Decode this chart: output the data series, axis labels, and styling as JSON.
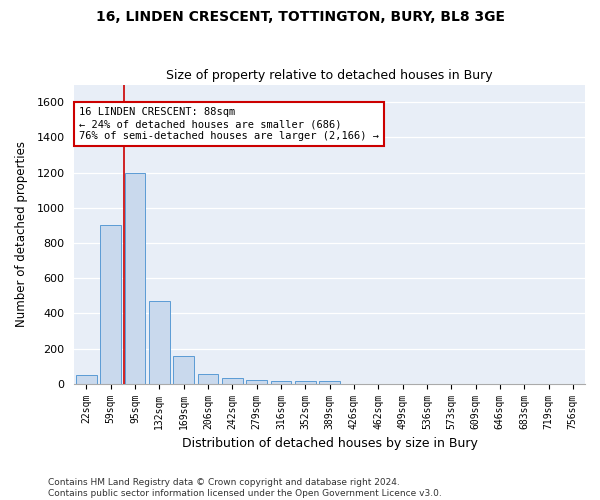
{
  "title1": "16, LINDEN CRESCENT, TOTTINGTON, BURY, BL8 3GE",
  "title2": "Size of property relative to detached houses in Bury",
  "xlabel": "Distribution of detached houses by size in Bury",
  "ylabel": "Number of detached properties",
  "bar_color": "#c9d9ed",
  "bar_edge_color": "#5b9bd5",
  "categories": [
    "22sqm",
    "59sqm",
    "95sqm",
    "132sqm",
    "169sqm",
    "206sqm",
    "242sqm",
    "279sqm",
    "316sqm",
    "352sqm",
    "389sqm",
    "426sqm",
    "462sqm",
    "499sqm",
    "536sqm",
    "573sqm",
    "609sqm",
    "646sqm",
    "683sqm",
    "719sqm",
    "756sqm"
  ],
  "values": [
    50,
    900,
    1200,
    470,
    155,
    55,
    30,
    22,
    15,
    15,
    15,
    0,
    0,
    0,
    0,
    0,
    0,
    0,
    0,
    0,
    0
  ],
  "ylim": [
    0,
    1700
  ],
  "yticks": [
    0,
    200,
    400,
    600,
    800,
    1000,
    1200,
    1400,
    1600
  ],
  "property_line_x": 1.55,
  "annotation_text": "16 LINDEN CRESCENT: 88sqm\n← 24% of detached houses are smaller (686)\n76% of semi-detached houses are larger (2,166) →",
  "annotation_box_color": "#ffffff",
  "annotation_box_edge": "#cc0000",
  "property_line_color": "#cc0000",
  "background_color": "#e8eef7",
  "fig_background": "#ffffff",
  "grid_color": "#ffffff",
  "footer": "Contains HM Land Registry data © Crown copyright and database right 2024.\nContains public sector information licensed under the Open Government Licence v3.0."
}
